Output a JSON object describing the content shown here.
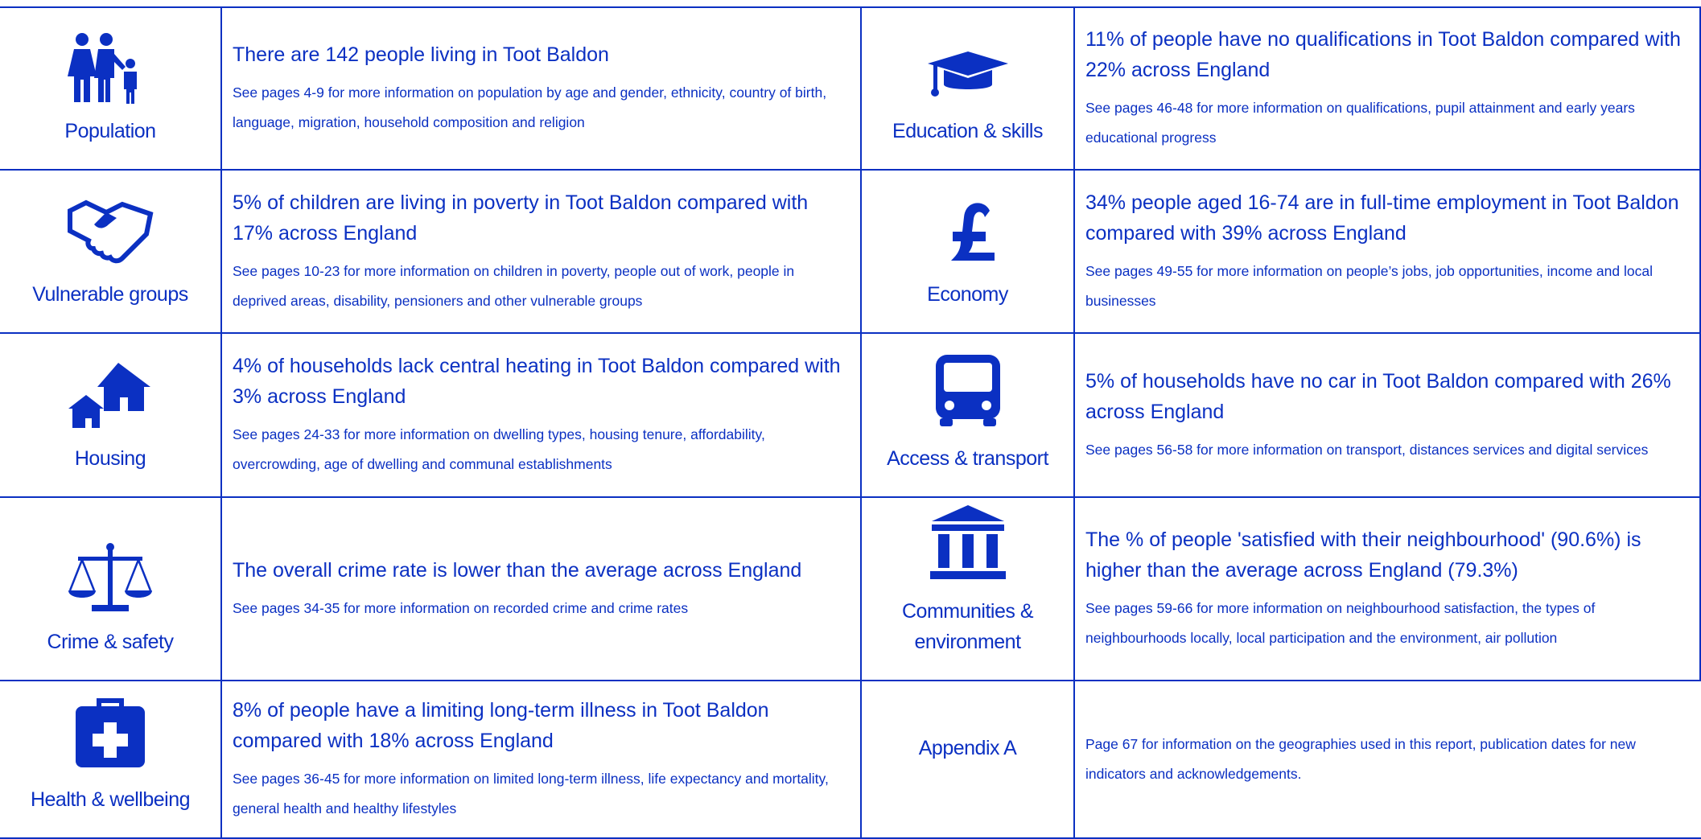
{
  "rows": [
    {
      "left": {
        "label": "Population",
        "headline": "There are 142 people living in Toot Baldon",
        "detail": "See pages 4-9 for more information on population by age and gender, ethnicity, country of birth, language, migration, household composition and religion"
      },
      "right": {
        "label": "Education & skills",
        "headline": "11% of people have no qualifications in Toot Baldon compared with 22% across England",
        "detail": "See pages 46-48 for more information on qualifications, pupil attainment and early years educational progress"
      }
    },
    {
      "left": {
        "label": "Vulnerable groups",
        "headline": "5% of children are living in poverty in Toot Baldon compared with 17% across England",
        "detail": "See pages 10-23 for more information on children in poverty, people out of work, people in deprived areas, disability, pensioners and other vulnerable groups"
      },
      "right": {
        "label": "Economy",
        "headline": "34% people aged 16-74 are in full-time employment in Toot Baldon compared with 39% across England",
        "detail": "See pages 49-55 for more information on people’s jobs, job opportunities, income and local businesses"
      }
    },
    {
      "left": {
        "label": "Housing",
        "headline": "4% of households lack central heating in Toot Baldon compared with 3% across England",
        "detail": "See pages 24-33 for more information on dwelling types, housing tenure, affordability, overcrowding, age of dwelling and communal establishments"
      },
      "right": {
        "label": "Access & transport",
        "headline": "5% of households have no car in Toot Baldon compared with 26% across England",
        "detail": "See pages 56-58 for more information on transport, distances services and digital services"
      }
    },
    {
      "left": {
        "label": "Crime & safety",
        "headline": "The overall crime rate is lower than the average across England",
        "detail": "See pages 34-35 for more information on recorded crime and crime rates"
      },
      "right": {
        "label": "Communities & environment",
        "headline": "The % of people 'satisfied with their neighbourhood' (90.6%) is higher than the average across England (79.3%)",
        "detail": "See pages 59-66 for more information on neighbourhood satisfaction, the types of neighbourhoods locally, local participation and the environment, air pollution"
      }
    },
    {
      "left": {
        "label": "Health & wellbeing",
        "headline": "8% of people have a limiting long-term illness in Toot Baldon compared with 18% across England",
        "detail": "See pages 36-45 for more information on limited long-term illness, life expectancy and mortality, general health and healthy lifestyles"
      },
      "right": {
        "label": "Appendix A",
        "detail": "Page 67 for information on the geographies used in this report, publication dates for new indicators and acknowledgements."
      }
    }
  ]
}
